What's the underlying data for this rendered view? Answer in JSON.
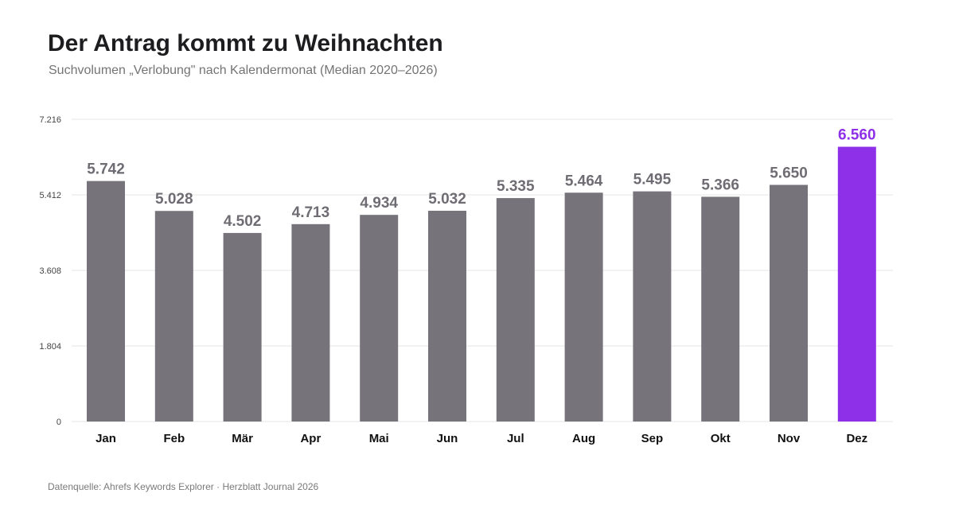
{
  "title": "Der Antrag kommt zu Weihnachten",
  "subtitle": "Suchvolumen „Verlobung\" nach Kalendermonat (Median 2020–2026)",
  "footer": "Datenquelle: Ahrefs Keywords Explorer · Herzblatt Journal 2026",
  "colors": {
    "bar": "#76737b",
    "highlight": "#8e30e8",
    "grid": "#e6e6e6",
    "axis_text": "#444444",
    "label_text": "#6f6c73",
    "category_text": "#111111"
  },
  "chart_data": {
    "type": "bar",
    "categories": [
      "Jan",
      "Feb",
      "Mär",
      "Apr",
      "Mai",
      "Jun",
      "Jul",
      "Aug",
      "Sep",
      "Okt",
      "Nov",
      "Dez"
    ],
    "values": [
      5742,
      5028,
      4502,
      4713,
      4934,
      5032,
      5335,
      5464,
      5495,
      5366,
      5650,
      6560
    ],
    "value_labels": [
      "5.742",
      "5.028",
      "4.502",
      "4.713",
      "4.934",
      "5.032",
      "5.335",
      "5.464",
      "5.495",
      "5.366",
      "5.650",
      "6.560"
    ],
    "highlight_category": "Dez",
    "y_ticks": [
      0,
      1804,
      3608,
      5412,
      7216
    ],
    "y_tick_labels": [
      "0",
      "1.804",
      "3.608",
      "5.412",
      "7.216"
    ],
    "ylim": [
      0,
      7216
    ],
    "grid": true,
    "xlabel": "",
    "ylabel": ""
  }
}
